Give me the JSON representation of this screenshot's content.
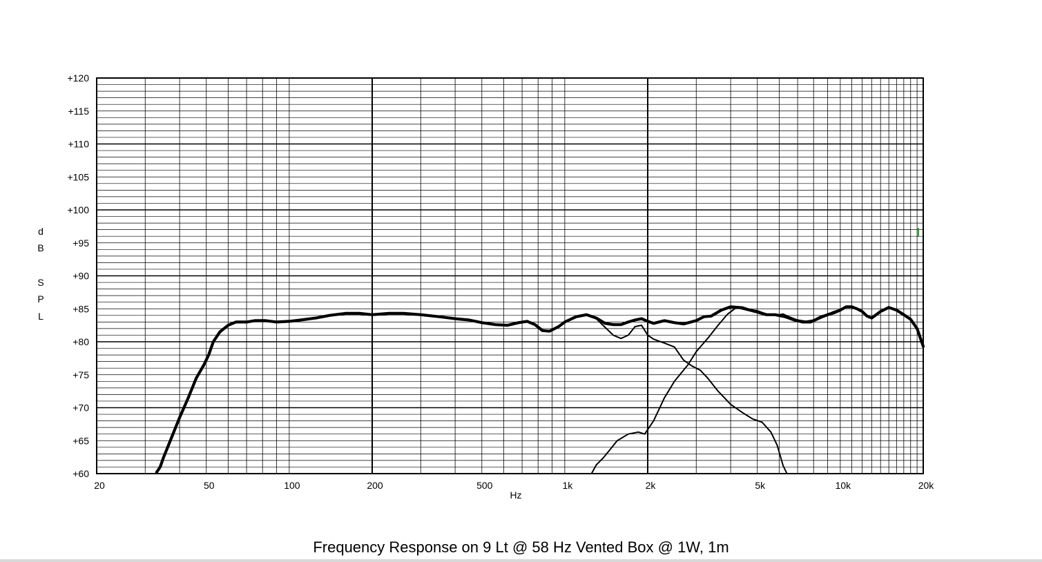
{
  "chart_data": {
    "type": "line",
    "title": "Frequency Response on 9 Lt @ 58 Hz Vented Box @ 1W, 1m",
    "xlabel": "Hz",
    "ylabel": "dB SPL",
    "ylabel_letters": [
      "d",
      "B",
      "S",
      "P",
      "L"
    ],
    "x_scale": "log",
    "xlim": [
      20,
      20000
    ],
    "ylim": [
      60,
      120
    ],
    "x_tick_values": [
      20,
      50,
      100,
      200,
      500,
      1000,
      2000,
      5000,
      10000,
      20000
    ],
    "x_tick_labels": [
      "20",
      "50",
      "100",
      "200",
      "500",
      "1k",
      "2k",
      "5k",
      "10k",
      "20k"
    ],
    "y_tick_values": [
      60,
      65,
      70,
      75,
      80,
      85,
      90,
      95,
      100,
      105,
      110,
      115,
      120
    ],
    "y_tick_labels": [
      "+60",
      "+65",
      "+70",
      "+75",
      "+80",
      "+85",
      "+90",
      "+95",
      "+100",
      "+105",
      "+110",
      "+115",
      "+120"
    ],
    "grid": true,
    "legend": "none",
    "series": [
      {
        "style": "thick",
        "points": [
          [
            33,
            60.2
          ],
          [
            34,
            61
          ],
          [
            35,
            62.5
          ],
          [
            37,
            65
          ],
          [
            40,
            68.5
          ],
          [
            43,
            71.5
          ],
          [
            46,
            74.5
          ],
          [
            49,
            76.5
          ],
          [
            51,
            78
          ],
          [
            53,
            80
          ],
          [
            56,
            81.5
          ],
          [
            60,
            82.5
          ],
          [
            64,
            83
          ],
          [
            70,
            83
          ],
          [
            75,
            83.2
          ],
          [
            82,
            83.2
          ],
          [
            90,
            83
          ],
          [
            100,
            83.1
          ],
          [
            110,
            83.3
          ],
          [
            125,
            83.6
          ],
          [
            140,
            84
          ],
          [
            160,
            84.3
          ],
          [
            180,
            84.3
          ],
          [
            200,
            84.1
          ],
          [
            230,
            84.3
          ],
          [
            260,
            84.3
          ],
          [
            300,
            84.1
          ],
          [
            350,
            83.8
          ],
          [
            400,
            83.5
          ],
          [
            450,
            83.3
          ],
          [
            500,
            82.9
          ],
          [
            560,
            82.6
          ],
          [
            620,
            82.5
          ],
          [
            680,
            82.9
          ],
          [
            730,
            83.1
          ],
          [
            780,
            82.6
          ],
          [
            830,
            81.7
          ],
          [
            880,
            81.6
          ],
          [
            950,
            82.3
          ],
          [
            1000,
            83
          ],
          [
            1100,
            83.8
          ],
          [
            1200,
            84.1
          ],
          [
            1300,
            83.6
          ],
          [
            1400,
            82.8
          ],
          [
            1500,
            82.6
          ],
          [
            1600,
            82.6
          ],
          [
            1700,
            83
          ],
          [
            1800,
            83.3
          ],
          [
            1900,
            83.5
          ],
          [
            2000,
            83.1
          ],
          [
            2100,
            82.8
          ],
          [
            2300,
            83.2
          ],
          [
            2500,
            82.9
          ],
          [
            2700,
            82.7
          ],
          [
            3000,
            83.2
          ],
          [
            3200,
            83.8
          ],
          [
            3400,
            83.9
          ],
          [
            3700,
            84.8
          ],
          [
            4000,
            85.3
          ],
          [
            4300,
            85.2
          ],
          [
            4600,
            84.9
          ],
          [
            5000,
            84.5
          ],
          [
            5400,
            84.1
          ],
          [
            5800,
            84.1
          ],
          [
            6300,
            83.8
          ],
          [
            6800,
            83.3
          ],
          [
            7300,
            83
          ],
          [
            7800,
            83
          ],
          [
            8500,
            83.7
          ],
          [
            9000,
            84.1
          ],
          [
            9500,
            84.4
          ],
          [
            10000,
            84.8
          ],
          [
            10500,
            85.3
          ],
          [
            11000,
            85.3
          ],
          [
            11500,
            85
          ],
          [
            12000,
            84.6
          ],
          [
            12500,
            83.9
          ],
          [
            13000,
            83.6
          ],
          [
            14000,
            84.6
          ],
          [
            15000,
            85.2
          ],
          [
            16000,
            84.8
          ],
          [
            17000,
            84.1
          ],
          [
            18000,
            83.4
          ],
          [
            19000,
            82
          ],
          [
            20000,
            79.3
          ]
        ]
      },
      {
        "style": "thin",
        "points": [
          [
            1250,
            60
          ],
          [
            1300,
            61.3
          ],
          [
            1380,
            62.4
          ],
          [
            1450,
            63.5
          ],
          [
            1550,
            65
          ],
          [
            1700,
            66
          ],
          [
            1850,
            66.3
          ],
          [
            1950,
            66
          ],
          [
            2100,
            68
          ],
          [
            2300,
            71.5
          ],
          [
            2500,
            74
          ],
          [
            2800,
            76.5
          ],
          [
            3000,
            78.5
          ],
          [
            3300,
            80.5
          ],
          [
            3600,
            82.5
          ],
          [
            3900,
            84.2
          ],
          [
            4200,
            85.2
          ],
          [
            4400,
            85.3
          ],
          [
            4700,
            84.9
          ],
          [
            5000,
            84.7
          ],
          [
            5400,
            84.2
          ],
          [
            5800,
            84
          ],
          [
            6200,
            84.2
          ],
          [
            6600,
            83.7
          ],
          [
            7000,
            83.3
          ],
          [
            7500,
            83.1
          ],
          [
            8000,
            83.3
          ],
          [
            8500,
            83.9
          ],
          [
            9000,
            84.2
          ],
          [
            9500,
            84.6
          ],
          [
            10000,
            84.9
          ],
          [
            10500,
            85.3
          ],
          [
            11000,
            85.3
          ],
          [
            11500,
            85.1
          ],
          [
            12000,
            84.6
          ],
          [
            12500,
            84
          ],
          [
            13000,
            83.7
          ],
          [
            14000,
            84.7
          ],
          [
            15000,
            85.2
          ],
          [
            16000,
            84.8
          ],
          [
            17000,
            84.2
          ],
          [
            18000,
            83.5
          ],
          [
            19000,
            82.1
          ],
          [
            20000,
            79.5
          ]
        ]
      },
      {
        "style": "thin",
        "points": [
          [
            1000,
            83
          ],
          [
            1100,
            83.7
          ],
          [
            1200,
            84
          ],
          [
            1300,
            83.5
          ],
          [
            1400,
            82.2
          ],
          [
            1500,
            81
          ],
          [
            1600,
            80.5
          ],
          [
            1700,
            81
          ],
          [
            1800,
            82.3
          ],
          [
            1900,
            82.5
          ],
          [
            2000,
            81
          ],
          [
            2100,
            80.4
          ],
          [
            2300,
            79.8
          ],
          [
            2500,
            79.2
          ],
          [
            2700,
            77.2
          ],
          [
            2900,
            76.3
          ],
          [
            3100,
            75.7
          ],
          [
            3300,
            74.5
          ],
          [
            3600,
            72.5
          ],
          [
            4000,
            70.5
          ],
          [
            4400,
            69.3
          ],
          [
            4800,
            68.3
          ],
          [
            5200,
            67.8
          ],
          [
            5600,
            66.3
          ],
          [
            5900,
            64.3
          ],
          [
            6200,
            61.2
          ],
          [
            6400,
            60
          ]
        ]
      }
    ]
  }
}
